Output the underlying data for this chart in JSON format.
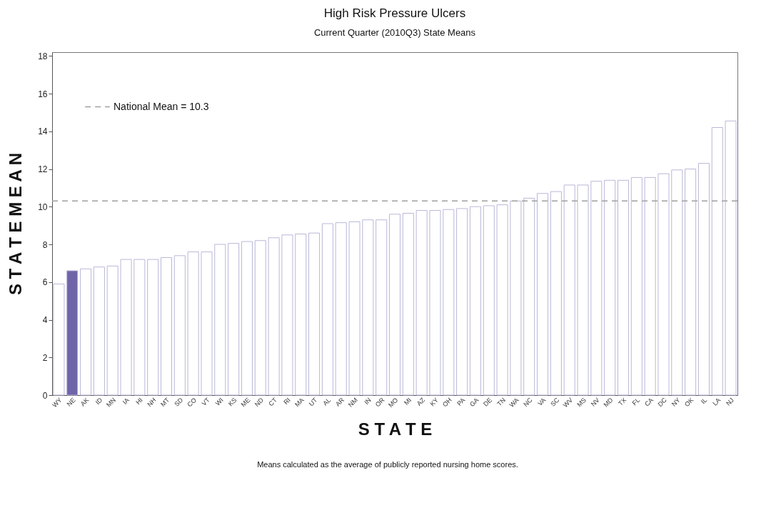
{
  "chart_data": {
    "type": "bar",
    "title": "High Risk Pressure Ulcers",
    "subtitle": "Current Quarter (2010Q3) State Means",
    "xlabel": "S T A T E",
    "ylabel": "S T A T E M E A N",
    "categories": [
      "WY",
      "NE",
      "AK",
      "ID",
      "MN",
      "IA",
      "HI",
      "NH",
      "MT",
      "SD",
      "CO",
      "VT",
      "WI",
      "KS",
      "ME",
      "ND",
      "CT",
      "RI",
      "MA",
      "UT",
      "AL",
      "AR",
      "NM",
      "IN",
      "OR",
      "MO",
      "MI",
      "AZ",
      "KY",
      "OH",
      "PA",
      "GA",
      "DE",
      "TN",
      "WA",
      "NC",
      "VA",
      "SC",
      "WV",
      "MS",
      "NV",
      "MD",
      "TX",
      "FL",
      "CA",
      "DC",
      "NY",
      "OK",
      "IL",
      "LA",
      "NJ"
    ],
    "values": [
      5.9,
      6.6,
      6.7,
      6.8,
      6.85,
      7.2,
      7.2,
      7.2,
      7.3,
      7.4,
      7.6,
      7.6,
      8.0,
      8.05,
      8.15,
      8.2,
      8.35,
      8.5,
      8.55,
      8.6,
      9.1,
      9.15,
      9.2,
      9.3,
      9.3,
      9.6,
      9.65,
      9.8,
      9.8,
      9.85,
      9.9,
      10.0,
      10.05,
      10.1,
      10.3,
      10.45,
      10.7,
      10.8,
      11.15,
      11.15,
      11.35,
      11.4,
      11.4,
      11.55,
      11.55,
      11.75,
      11.95,
      12.0,
      12.3,
      14.2,
      14.55
    ],
    "colors": [
      "#ffffff",
      "#6e64a8",
      "#ffffff",
      "#ffffff",
      "#ffffff",
      "#ffffff",
      "#ffffff",
      "#ffffff",
      "#ffffff",
      "#ffffff",
      "#ffffff",
      "#ffffff",
      "#ffffff",
      "#ffffff",
      "#ffffff",
      "#ffffff",
      "#ffffff",
      "#ffffff",
      "#ffffff",
      "#ffffff",
      "#ffffff",
      "#ffffff",
      "#ffffff",
      "#ffffff",
      "#ffffff",
      "#ffffff",
      "#ffffff",
      "#ffffff",
      "#ffffff",
      "#ffffff",
      "#ffffff",
      "#ffffff",
      "#ffffff",
      "#ffffff",
      "#ffffff",
      "#ffffff",
      "#ffffff",
      "#ffffff",
      "#ffffff",
      "#ffffff",
      "#ffffff",
      "#ffffff",
      "#ffffff",
      "#ffffff",
      "#ffffff",
      "#ffffff",
      "#ffffff",
      "#ffffff",
      "#ffffff",
      "#ffffff",
      "#ffffff"
    ],
    "ylim": [
      0,
      18.2
    ],
    "yticks": [
      0,
      2,
      4,
      6,
      8,
      10,
      12,
      14,
      16,
      18
    ],
    "ref_lines": [
      {
        "axis": "y",
        "value": 10.3,
        "label": "National Mean =  10.3",
        "color": "#a0a0a0",
        "line_style": "dashed"
      }
    ],
    "grid": false,
    "annotations": [
      "Means calculated as the average of publicly reported nursing home scores."
    ]
  }
}
